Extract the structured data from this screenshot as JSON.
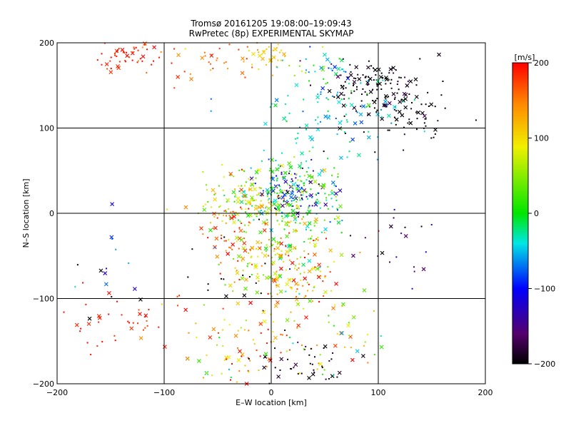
{
  "chart_data": {
    "type": "scatter",
    "title": "Tromsø 20161205 19:08:00–19:09:43",
    "subtitle": "RwPretec (8p) EXPERIMENTAL SKYMAP",
    "xlabel": "E–W location [km]",
    "ylabel": "N–S location [km]",
    "xlim": [
      -200,
      200
    ],
    "ylim": [
      -200,
      200
    ],
    "xticks": [
      -200,
      -100,
      0,
      100,
      200
    ],
    "yticks": [
      -200,
      -100,
      0,
      100,
      200
    ],
    "x_tick_labels": [
      "−200",
      "−100",
      "0",
      "100",
      "200"
    ],
    "y_tick_labels": [
      "−200",
      "−100",
      "0",
      "100",
      "200"
    ],
    "grid": true,
    "colorbar": {
      "label": "[m/s]",
      "range": [
        -200,
        200
      ],
      "ticks": [
        200,
        100,
        0,
        -100,
        -200
      ],
      "tick_labels": [
        "200",
        "100",
        "0",
        "−100",
        "−200"
      ],
      "colormap": "black-purple-blue-cyan-green-yellow-red"
    },
    "clusters": [
      {
        "cx": -135,
        "cy": 185,
        "sx": 15,
        "sy": 10,
        "vmean": 190,
        "vsd": 10,
        "n": 50
      },
      {
        "cx": -60,
        "cy": 180,
        "sx": 30,
        "sy": 12,
        "vmean": 160,
        "vsd": 25,
        "n": 40
      },
      {
        "cx": 0,
        "cy": 185,
        "sx": 10,
        "sy": 8,
        "vmean": 110,
        "vsd": 20,
        "n": 30
      },
      {
        "cx": 50,
        "cy": 170,
        "sx": 20,
        "sy": 12,
        "vmean": -10,
        "vsd": 50,
        "n": 40
      },
      {
        "cx": 95,
        "cy": 150,
        "sx": 25,
        "sy": 15,
        "vmean": -195,
        "vsd": 10,
        "n": 120
      },
      {
        "cx": 125,
        "cy": 115,
        "sx": 25,
        "sy": 15,
        "vmean": -195,
        "vsd": 10,
        "n": 60
      },
      {
        "cx": 60,
        "cy": 115,
        "sx": 35,
        "sy": 25,
        "vmean": -40,
        "vsd": 25,
        "n": 100
      },
      {
        "cx": 25,
        "cy": 25,
        "sx": 18,
        "sy": 15,
        "vmean": -100,
        "vsd": 60,
        "n": 110
      },
      {
        "cx": 15,
        "cy": 20,
        "sx": 28,
        "sy": 25,
        "vmean": 10,
        "vsd": 40,
        "n": 220
      },
      {
        "cx": -20,
        "cy": 10,
        "sx": 25,
        "sy": 20,
        "vmean": 90,
        "vsd": 50,
        "n": 120
      },
      {
        "cx": -35,
        "cy": -30,
        "sx": 15,
        "sy": 25,
        "vmean": 180,
        "vsd": 20,
        "n": 40
      },
      {
        "cx": 10,
        "cy": -60,
        "sx": 30,
        "sy": 30,
        "vmean": 100,
        "vsd": 60,
        "n": 220
      },
      {
        "cx": -40,
        "cy": -80,
        "sx": 25,
        "sy": 20,
        "vmean": -200,
        "vsd": 5,
        "n": 15
      },
      {
        "cx": -140,
        "cy": -130,
        "sx": 25,
        "sy": 20,
        "vmean": 190,
        "vsd": 10,
        "n": 40
      },
      {
        "cx": -30,
        "cy": -160,
        "sx": 30,
        "sy": 25,
        "vmean": 120,
        "vsd": 60,
        "n": 80
      },
      {
        "cx": 30,
        "cy": -180,
        "sx": 25,
        "sy": 15,
        "vmean": -190,
        "vsd": 15,
        "n": 50
      },
      {
        "cx": 60,
        "cy": -150,
        "sx": 30,
        "sy": 30,
        "vmean": 80,
        "vsd": 80,
        "n": 50
      },
      {
        "cx": 110,
        "cy": -40,
        "sx": 20,
        "sy": 25,
        "vmean": -170,
        "vsd": 30,
        "n": 20
      },
      {
        "cx": -150,
        "cy": -60,
        "sx": 20,
        "sy": 25,
        "vmean": -100,
        "vsd": 100,
        "n": 15
      }
    ]
  }
}
